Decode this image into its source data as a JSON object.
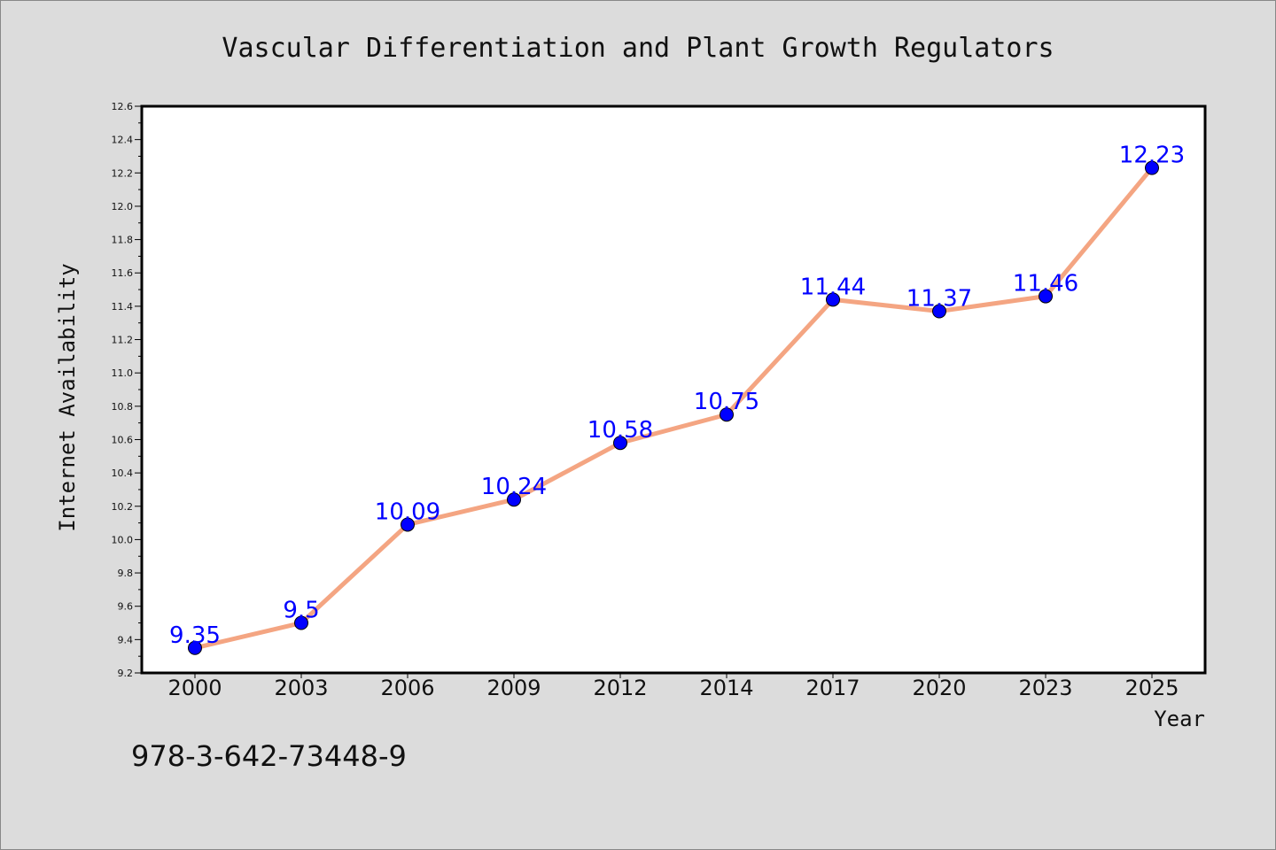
{
  "chart_data": {
    "type": "line",
    "title": "Vascular Differentiation and Plant Growth Regulators",
    "xlabel": "Year",
    "ylabel": "Internet Availability",
    "categories": [
      "2000",
      "2003",
      "2006",
      "2009",
      "2012",
      "2014",
      "2017",
      "2020",
      "2023",
      "2025"
    ],
    "series": [
      {
        "values": [
          9.35,
          9.5,
          10.09,
          10.24,
          10.58,
          10.75,
          11.44,
          11.37,
          11.46,
          12.23
        ],
        "data_labels": [
          "9.35",
          "9.5",
          "10.09",
          "10.24",
          "10.58",
          "10.75",
          "11.44",
          "11.37",
          "11.46",
          "12.23"
        ]
      }
    ],
    "ylim": [
      9.2,
      12.6
    ],
    "yticks": [
      "9.2",
      "9.4",
      "9.6",
      "9.8",
      "10.0",
      "10.2",
      "10.4",
      "10.6",
      "10.8",
      "11.0",
      "11.2",
      "11.4",
      "11.6",
      "11.8",
      "12.0",
      "12.2",
      "12.4",
      "12.6"
    ],
    "grid": false,
    "legend": "none",
    "colors": {
      "line": "#f4a582",
      "marker": "#0000ff",
      "data_label": "#0000ff",
      "plot_background": "#ffffff",
      "figure_background": "#dcdcdc"
    }
  },
  "footer": {
    "text": "978-3-642-73448-9"
  }
}
